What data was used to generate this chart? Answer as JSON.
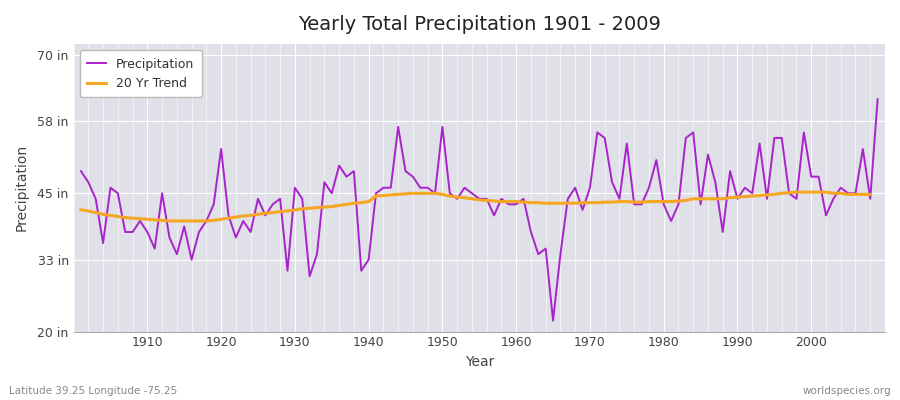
{
  "title": "Yearly Total Precipitation 1901 - 2009",
  "ylabel": "Precipitation",
  "xlabel": "Year",
  "footnote_left": "Latitude 39.25 Longitude -75.25",
  "footnote_right": "worldspecies.org",
  "ylim": [
    20,
    72
  ],
  "yticks": [
    20,
    33,
    45,
    58,
    70
  ],
  "ytick_labels": [
    "20 in",
    "33 in",
    "45 in",
    "58 in",
    "70 in"
  ],
  "xlim": [
    1900,
    2010
  ],
  "fig_bg_color": "#ffffff",
  "plot_bg_color": "#e0e0e8",
  "precip_color": "#aa22cc",
  "trend_color": "#f5a623",
  "years": [
    1901,
    1902,
    1903,
    1904,
    1905,
    1906,
    1907,
    1908,
    1909,
    1910,
    1911,
    1912,
    1913,
    1914,
    1915,
    1916,
    1917,
    1918,
    1919,
    1920,
    1921,
    1922,
    1923,
    1924,
    1925,
    1926,
    1927,
    1928,
    1929,
    1930,
    1931,
    1932,
    1933,
    1934,
    1935,
    1936,
    1937,
    1938,
    1939,
    1940,
    1941,
    1942,
    1943,
    1944,
    1945,
    1946,
    1947,
    1948,
    1949,
    1950,
    1951,
    1952,
    1953,
    1954,
    1955,
    1956,
    1957,
    1958,
    1959,
    1960,
    1961,
    1962,
    1963,
    1964,
    1965,
    1966,
    1967,
    1968,
    1969,
    1970,
    1971,
    1972,
    1973,
    1974,
    1975,
    1976,
    1977,
    1978,
    1979,
    1980,
    1981,
    1982,
    1983,
    1984,
    1985,
    1986,
    1987,
    1988,
    1989,
    1990,
    1991,
    1992,
    1993,
    1994,
    1995,
    1996,
    1997,
    1998,
    1999,
    2000,
    2001,
    2002,
    2003,
    2004,
    2005,
    2006,
    2007,
    2008,
    2009
  ],
  "precip": [
    49,
    47,
    44,
    36,
    46,
    45,
    38,
    38,
    40,
    38,
    35,
    45,
    37,
    34,
    39,
    33,
    38,
    40,
    43,
    53,
    41,
    37,
    40,
    38,
    44,
    41,
    43,
    44,
    31,
    46,
    44,
    30,
    34,
    47,
    45,
    50,
    48,
    49,
    31,
    33,
    45,
    46,
    46,
    57,
    49,
    48,
    46,
    46,
    45,
    57,
    45,
    44,
    46,
    45,
    44,
    44,
    41,
    44,
    43,
    43,
    44,
    38,
    34,
    35,
    22,
    34,
    44,
    46,
    42,
    46,
    56,
    55,
    47,
    44,
    54,
    43,
    43,
    46,
    51,
    43,
    40,
    43,
    55,
    56,
    43,
    52,
    47,
    38,
    49,
    44,
    46,
    45,
    54,
    44,
    55,
    55,
    45,
    44,
    56,
    48,
    48,
    41,
    44,
    46,
    45,
    45,
    53,
    44,
    62
  ],
  "trend": [
    42.0,
    41.8,
    41.5,
    41.2,
    41.0,
    40.8,
    40.6,
    40.5,
    40.4,
    40.3,
    40.2,
    40.1,
    40.0,
    40.0,
    40.0,
    40.0,
    40.0,
    40.0,
    40.1,
    40.3,
    40.5,
    40.7,
    40.9,
    41.0,
    41.2,
    41.4,
    41.5,
    41.7,
    41.8,
    42.0,
    42.2,
    42.3,
    42.4,
    42.5,
    42.6,
    42.8,
    43.0,
    43.2,
    43.3,
    43.5,
    44.5,
    44.6,
    44.7,
    44.8,
    44.9,
    45.0,
    45.0,
    45.0,
    45.0,
    44.8,
    44.5,
    44.3,
    44.2,
    44.0,
    43.8,
    43.7,
    43.6,
    43.5,
    43.5,
    43.5,
    43.4,
    43.3,
    43.3,
    43.2,
    43.2,
    43.2,
    43.2,
    43.2,
    43.3,
    43.3,
    43.3,
    43.4,
    43.4,
    43.5,
    43.5,
    43.4,
    43.4,
    43.5,
    43.5,
    43.5,
    43.5,
    43.6,
    43.7,
    44.0,
    44.0,
    44.0,
    44.0,
    44.0,
    44.2,
    44.3,
    44.4,
    44.5,
    44.6,
    44.7,
    44.8,
    45.0,
    45.1,
    45.2,
    45.2,
    45.2,
    45.2,
    45.2,
    45.0,
    45.0,
    44.8,
    44.8,
    44.8,
    44.8,
    null
  ]
}
